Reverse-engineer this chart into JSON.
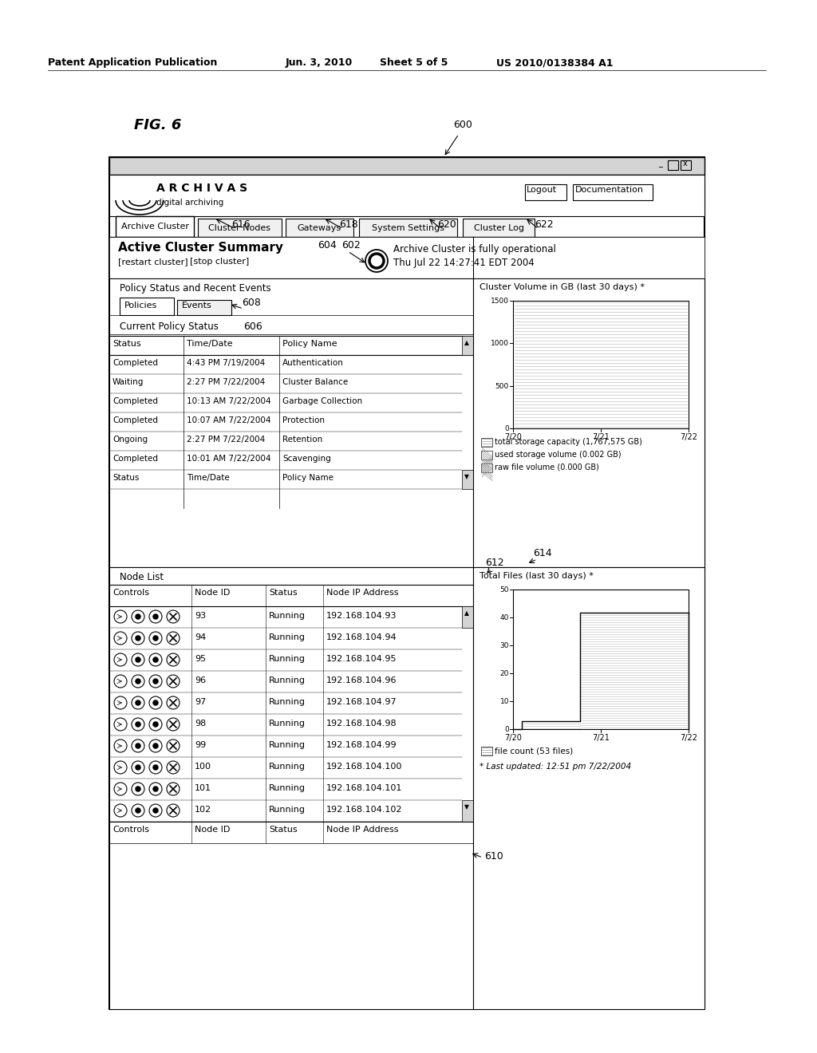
{
  "bg_color": "#ffffff",
  "header_text": "Patent Application Publication",
  "header_date": "Jun. 3, 2010",
  "header_sheet": "Sheet 5 of 5",
  "header_patent": "US 2010/0138384 A1",
  "fig_label": "FIG. 6",
  "fig_number": "600",
  "callout_616": "616",
  "callout_618": "618",
  "callout_620": "620",
  "callout_622": "622",
  "callout_602": "602",
  "callout_604": "604",
  "callout_606": "606",
  "callout_608": "608",
  "callout_610": "610",
  "callout_612": "612",
  "callout_614": "614",
  "tabs": [
    "Archive Cluster",
    "Cluster Nodes",
    "Gateways",
    "System Settings",
    "Cluster Log"
  ],
  "logo_text": "A R C H I V A S",
  "logo_sub": "digital archiving",
  "btn_logout": "Logout",
  "btn_docs": "Documentation",
  "cluster_summary": "Active Cluster Summary",
  "restart_link": "[restart cluster]",
  "stop_link": "[stop cluster]",
  "status_msg": "Archive Cluster is fully operational",
  "status_time": "Thu Jul 22 14:27:41 EDT 2004",
  "policy_panel_title": "Policy Status and Recent Events",
  "tab_policies": "Policies",
  "tab_events": "Events",
  "current_policy": "Current Policy Status",
  "policy_headers": [
    "Status",
    "Time/Date",
    "Policy Name"
  ],
  "policy_rows": [
    [
      "Completed",
      "4:43 PM 7/19/2004",
      "Authentication"
    ],
    [
      "Waiting",
      "2:27 PM 7/22/2004",
      "Cluster Balance"
    ],
    [
      "Completed",
      "10:13 AM 7/22/2004",
      "Garbage Collection"
    ],
    [
      "Completed",
      "10:07 AM 7/22/2004",
      "Protection"
    ],
    [
      "Ongoing",
      "2:27 PM 7/22/2004",
      "Retention"
    ],
    [
      "Completed",
      "10:01 AM 7/22/2004",
      "Scavenging"
    ],
    [
      "Status",
      "Time/Date",
      "Policy Name"
    ]
  ],
  "node_list_title": "Node List",
  "node_headers": [
    "Controls",
    "Node ID",
    "Status",
    "Node IP Address"
  ],
  "node_rows": [
    [
      "93",
      "Running",
      "192.168.104.93"
    ],
    [
      "94",
      "Running",
      "192.168.104.94"
    ],
    [
      "95",
      "Running",
      "192.168.104.95"
    ],
    [
      "96",
      "Running",
      "192.168.104.96"
    ],
    [
      "97",
      "Running",
      "192.168.104.97"
    ],
    [
      "98",
      "Running",
      "192.168.104.98"
    ],
    [
      "99",
      "Running",
      "192.168.104.99"
    ],
    [
      "100",
      "Running",
      "192.168.104.100"
    ],
    [
      "101",
      "Running",
      "192.168.104.101"
    ],
    [
      "102",
      "Running",
      "192.168.104.102"
    ]
  ],
  "cluster_vol_title": "Cluster Volume in GB (last 30 days) *",
  "cluster_vol_yticks": [
    "0",
    "500",
    "1000",
    "1500"
  ],
  "cluster_vol_xticks": [
    "7/20",
    "7/21",
    "7/22"
  ],
  "cluster_vol_legend": [
    "total storage capacity (1,767,575 GB)",
    "used storage volume (0.002 GB)",
    "raw file volume (0.000 GB)"
  ],
  "total_files_title": "Total Files (last 30 days) *",
  "total_files_yticks": [
    "0",
    "10",
    "20",
    "30",
    "40",
    "50"
  ],
  "total_files_xticks": [
    "7/20",
    "7/21",
    "7/22"
  ],
  "total_files_legend": "file count (53 files)",
  "last_updated": "* Last updated: 12:51 pm 7/22/2004"
}
